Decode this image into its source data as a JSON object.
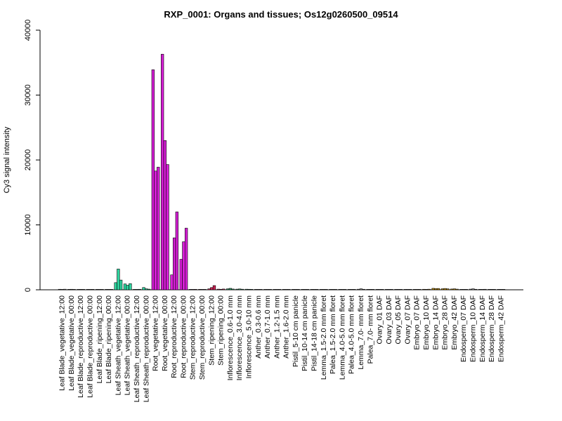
{
  "chart_data": {
    "type": "bar",
    "title": "RXP_0001: Organs and tissues; Os12g0260500_09514",
    "xlabel": "",
    "ylabel": "Cy3 signal intensity",
    "ylim": [
      0,
      40000
    ],
    "yticks": [
      0,
      10000,
      20000,
      30000,
      40000
    ],
    "grid": false,
    "legend": "none",
    "group_colors": {
      "leaf_blade": "#8a8a8a",
      "leaf_sheath": "#2fd6a0",
      "root": "#d61fd6",
      "stem": "#cc2255",
      "inflorescence": "#2fa06a",
      "floral": "#8a8a8a",
      "embryo": "#b8860b",
      "endosperm": "#8a8a8a"
    },
    "categories": [
      {
        "label": "Leaf Blade_vegetative_12:00",
        "group": "leaf_blade",
        "values": [
          80,
          60,
          90
        ]
      },
      {
        "label": "Leaf Blade_vegetative_00:00",
        "group": "leaf_blade",
        "values": [
          70,
          80,
          60
        ]
      },
      {
        "label": "Leaf Blade_reproductive_12:00",
        "group": "leaf_blade",
        "values": [
          60,
          70,
          50
        ]
      },
      {
        "label": "Leaf Blade_reproductive_00:00",
        "group": "leaf_blade",
        "values": [
          50,
          60,
          70
        ]
      },
      {
        "label": "Leaf Blade_ripening_12:00",
        "group": "leaf_blade",
        "values": [
          60,
          50,
          60
        ]
      },
      {
        "label": "Leaf Blade_ripening_00:00",
        "group": "leaf_blade",
        "values": [
          50,
          60,
          50
        ]
      },
      {
        "label": "Leaf Sheath_vegetative_12:00",
        "group": "leaf_sheath",
        "values": [
          1100,
          3200,
          1500
        ]
      },
      {
        "label": "Leaf Sheath_vegetative_00:00",
        "group": "leaf_sheath",
        "values": [
          900,
          700,
          950
        ]
      },
      {
        "label": "Leaf Sheath_reproductive_12:00",
        "group": "leaf_sheath",
        "values": [
          60,
          50,
          80
        ]
      },
      {
        "label": "Leaf Sheath_reproductive_00:00",
        "group": "leaf_sheath",
        "values": [
          350,
          150,
          100
        ]
      },
      {
        "label": "Root_vegetative_12:00",
        "group": "root",
        "values": [
          33900,
          18300,
          18900
        ]
      },
      {
        "label": "Root_vegetative_00:00",
        "group": "root",
        "values": [
          36300,
          23000,
          19300
        ]
      },
      {
        "label": "Root_reproductive_12:00",
        "group": "root",
        "values": [
          2300,
          8000,
          12000
        ]
      },
      {
        "label": "Root_reproductive_00:00",
        "group": "root",
        "values": [
          4700,
          7400,
          9500
        ]
      },
      {
        "label": "Stem_reproductive_12:00",
        "group": "stem",
        "values": [
          60,
          50,
          70
        ]
      },
      {
        "label": "Stem_reproductive_00:00",
        "group": "stem",
        "values": [
          70,
          60,
          50
        ]
      },
      {
        "label": "Stem_ripening_12:00",
        "group": "stem",
        "values": [
          150,
          350,
          650
        ]
      },
      {
        "label": "Stem_ripening_00:00",
        "group": "stem",
        "values": [
          100,
          80,
          120
        ]
      },
      {
        "label": "Inflorescence_0.6-1.0 mm",
        "group": "inflorescence",
        "values": [
          150,
          220,
          120
        ]
      },
      {
        "label": "Inflorescence_3.0-4.0 mm",
        "group": "inflorescence",
        "values": [
          100,
          130,
          90
        ]
      },
      {
        "label": "Inflorescence_5.0-10 mm",
        "group": "inflorescence",
        "values": [
          90,
          80,
          70
        ]
      },
      {
        "label": "Anther_0.3-0.6 mm",
        "group": "floral",
        "values": [
          60,
          50,
          60
        ]
      },
      {
        "label": "Anther_0.7-1.0 mm",
        "group": "floral",
        "values": [
          50,
          60,
          50
        ]
      },
      {
        "label": "Anther_1.2-1.5 mm",
        "group": "floral",
        "values": [
          50,
          50,
          60
        ]
      },
      {
        "label": "Anther_1.6-2.0 mm",
        "group": "floral",
        "values": [
          60,
          50,
          50
        ]
      },
      {
        "label": "Pistil_5-10 cm panicle",
        "group": "floral",
        "values": [
          50,
          60,
          50
        ]
      },
      {
        "label": "Pistil_10-14 cm panicle",
        "group": "floral",
        "values": [
          60,
          50,
          60
        ]
      },
      {
        "label": "Pistil_14-18 cm panicle",
        "group": "floral",
        "values": [
          50,
          60,
          50
        ]
      },
      {
        "label": "Lemma_1.5-2.0 mm floret",
        "group": "floral",
        "values": [
          60,
          50,
          60
        ]
      },
      {
        "label": "Palea_1.5-2.0 mm floret",
        "group": "floral",
        "values": [
          50,
          60,
          50
        ]
      },
      {
        "label": "Lemma_4.0-5.0 mm floret",
        "group": "floral",
        "values": [
          60,
          50,
          60
        ]
      },
      {
        "label": "Palea_4.0-5.0 mm floret",
        "group": "floral",
        "values": [
          50,
          60,
          50
        ]
      },
      {
        "label": "Lemma_7.0- mm floret",
        "group": "floral",
        "values": [
          90,
          150,
          80
        ]
      },
      {
        "label": "Palea_7.0- mm floret",
        "group": "floral",
        "values": [
          60,
          70,
          50
        ]
      },
      {
        "label": "Ovary_01 DAF",
        "group": "floral",
        "values": [
          60,
          50,
          60
        ]
      },
      {
        "label": "Ovary_03 DAF",
        "group": "floral",
        "values": [
          50,
          60,
          50
        ]
      },
      {
        "label": "Ovary_05 DAF",
        "group": "floral",
        "values": [
          60,
          50,
          60
        ]
      },
      {
        "label": "Ovary_07 DAF",
        "group": "floral",
        "values": [
          50,
          60,
          50
        ]
      },
      {
        "label": "Embryo_07 DAF",
        "group": "embryo",
        "values": [
          60,
          50,
          60
        ]
      },
      {
        "label": "Embryo_10 DAF",
        "group": "embryo",
        "values": [
          80,
          70,
          90
        ]
      },
      {
        "label": "Embryo_14 DAF",
        "group": "embryo",
        "values": [
          220,
          180,
          200
        ]
      },
      {
        "label": "Embryo_28 DAF",
        "group": "embryo",
        "values": [
          160,
          200,
          150
        ]
      },
      {
        "label": "Embryo_42 DAF",
        "group": "embryo",
        "values": [
          120,
          150,
          100
        ]
      },
      {
        "label": "Endosperm_07 DAF",
        "group": "endosperm",
        "values": [
          60,
          50,
          60
        ]
      },
      {
        "label": "Endosperm_10 DAF",
        "group": "endosperm",
        "values": [
          100,
          150,
          80
        ]
      },
      {
        "label": "Endosperm_14 DAF",
        "group": "endosperm",
        "values": [
          70,
          60,
          80
        ]
      },
      {
        "label": "Endosperm_28 DAF",
        "group": "endosperm",
        "values": [
          60,
          70,
          50
        ]
      },
      {
        "label": "Endosperm_42 DAF",
        "group": "endosperm",
        "values": [
          60,
          50,
          60
        ]
      }
    ]
  }
}
